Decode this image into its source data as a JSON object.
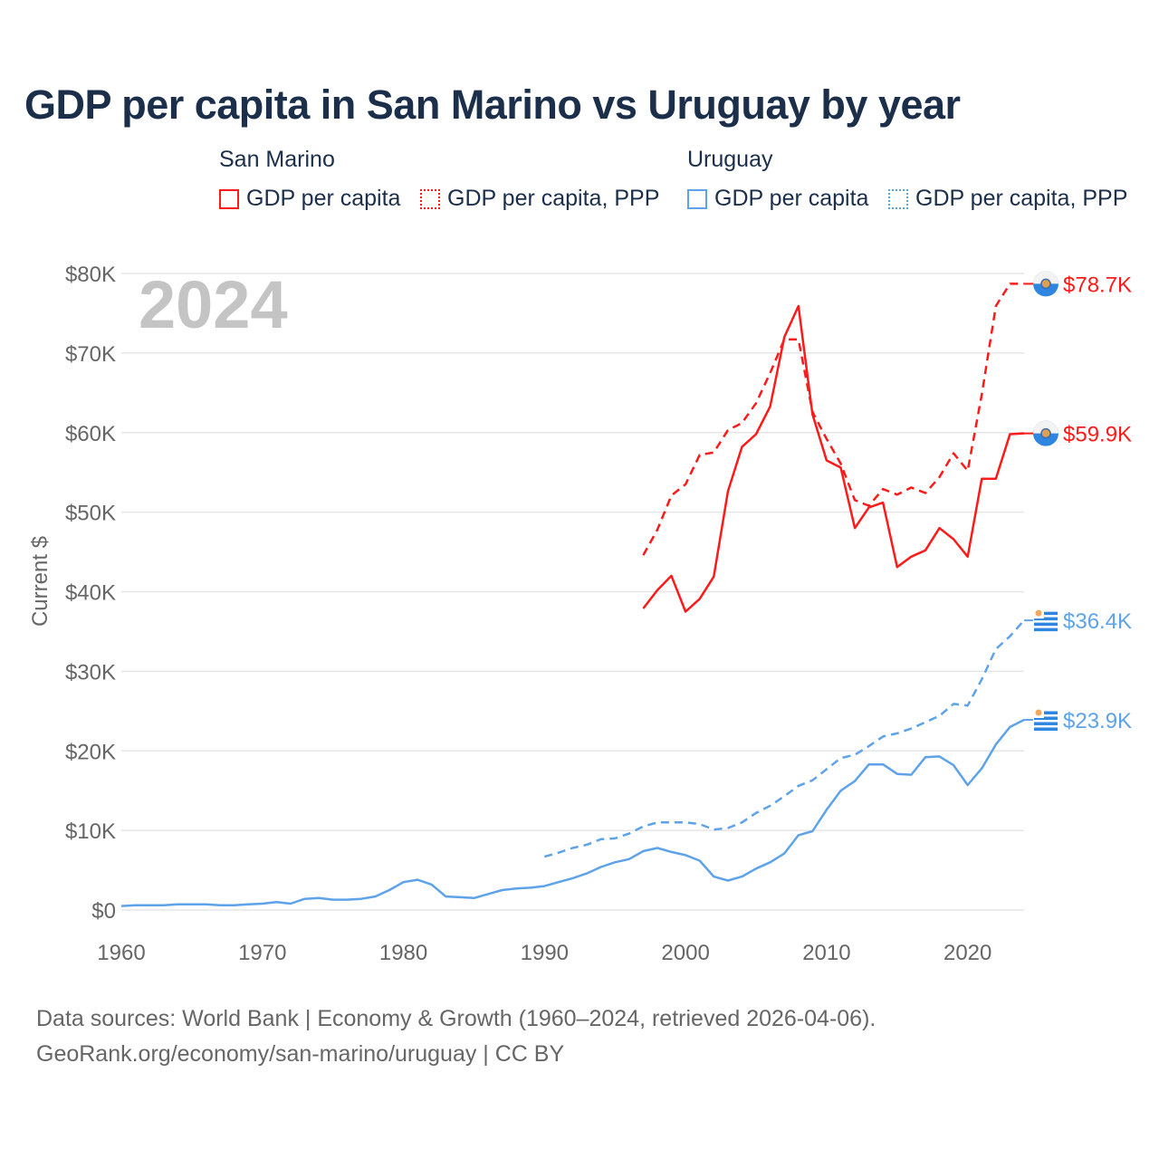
{
  "title": "GDP per capita in San Marino vs Uruguay by year",
  "legend": {
    "groups": [
      {
        "name": "San Marino",
        "items": [
          "GDP per capita",
          "GDP per capita, PPP"
        ]
      },
      {
        "name": "Uruguay",
        "items": [
          "GDP per capita",
          "GDP per capita, PPP"
        ]
      }
    ]
  },
  "colors": {
    "san_marino": "#ff1a1a",
    "uruguay": "#5ea3ea"
  },
  "footer": {
    "line1": "Data sources: World Bank | Economy & Growth (1960–2024, retrieved 2026-04-06).",
    "line2": "GeoRank.org/economy/san-marino/uruguay | CC BY"
  },
  "chart_data": {
    "type": "line",
    "title": "GDP per capita in San Marino vs Uruguay by year",
    "ylabel": "Current $",
    "xlabel": "",
    "year_watermark": "2024",
    "xlim": [
      1960,
      2024
    ],
    "ylim": [
      0,
      80000
    ],
    "xticks": [
      1960,
      1970,
      1980,
      1990,
      2000,
      2010,
      2020
    ],
    "xtick_labels": [
      "1960",
      "1970",
      "1980",
      "1990",
      "2000",
      "2010",
      "2020"
    ],
    "yticks": [
      0,
      10000,
      20000,
      30000,
      40000,
      50000,
      60000,
      70000,
      80000
    ],
    "ytick_labels": [
      "$0",
      "$10K",
      "$20K",
      "$30K",
      "$40K",
      "$50K",
      "$60K",
      "$70K",
      "$80K"
    ],
    "grid": true,
    "legend_position": "top",
    "series": [
      {
        "name": "San Marino GDP per capita",
        "country": "san_marino",
        "dash": false,
        "start": 1997,
        "end_label": "$59.9K",
        "values": [
          37900,
          40200,
          42000,
          37500,
          39100,
          41900,
          52600,
          58200,
          59800,
          63300,
          72000,
          75900,
          62300,
          56500,
          55600,
          48000,
          50600,
          51200,
          43100,
          44400,
          45200,
          48000,
          46600,
          44400,
          54200,
          54200,
          59800,
          59900
        ]
      },
      {
        "name": "San Marino GDP per capita, PPP",
        "country": "san_marino",
        "dash": true,
        "start": 1997,
        "end_label": "$78.7K",
        "values": [
          44600,
          47800,
          52100,
          53500,
          57200,
          57500,
          60300,
          61200,
          63700,
          67500,
          71700,
          71700,
          62600,
          59200,
          56100,
          51500,
          50800,
          52900,
          52200,
          53100,
          52400,
          54400,
          57400,
          55200,
          64800,
          75900,
          78700,
          78700
        ]
      },
      {
        "name": "Uruguay GDP per capita",
        "country": "uruguay",
        "dash": false,
        "start": 1960,
        "end_label": "$23.9K",
        "values": [
          500,
          600,
          600,
          600,
          700,
          700,
          700,
          600,
          600,
          700,
          800,
          1000,
          800,
          1400,
          1500,
          1300,
          1300,
          1400,
          1700,
          2500,
          3500,
          3800,
          3200,
          1700,
          1600,
          1500,
          2000,
          2500,
          2700,
          2800,
          3000,
          3500,
          4000,
          4600,
          5400,
          6000,
          6400,
          7400,
          7800,
          7300,
          6900,
          6200,
          4200,
          3700,
          4200,
          5200,
          6000,
          7100,
          9400,
          9900,
          12600,
          15000,
          16200,
          18300,
          18300,
          17100,
          17000,
          19200,
          19300,
          18200,
          15700,
          17800,
          20800,
          23000,
          23900
        ]
      },
      {
        "name": "Uruguay GDP per capita, PPP",
        "country": "uruguay",
        "dash": true,
        "start": 1990,
        "end_label": "$36.4K",
        "values": [
          6700,
          7200,
          7800,
          8200,
          8900,
          9000,
          9600,
          10500,
          11000,
          11000,
          11000,
          10800,
          10100,
          10300,
          11000,
          12200,
          13100,
          14300,
          15600,
          16300,
          17700,
          19100,
          19500,
          20600,
          21800,
          22200,
          22800,
          23600,
          24400,
          25900,
          25700,
          29000,
          32800,
          34400,
          36400
        ]
      }
    ]
  }
}
